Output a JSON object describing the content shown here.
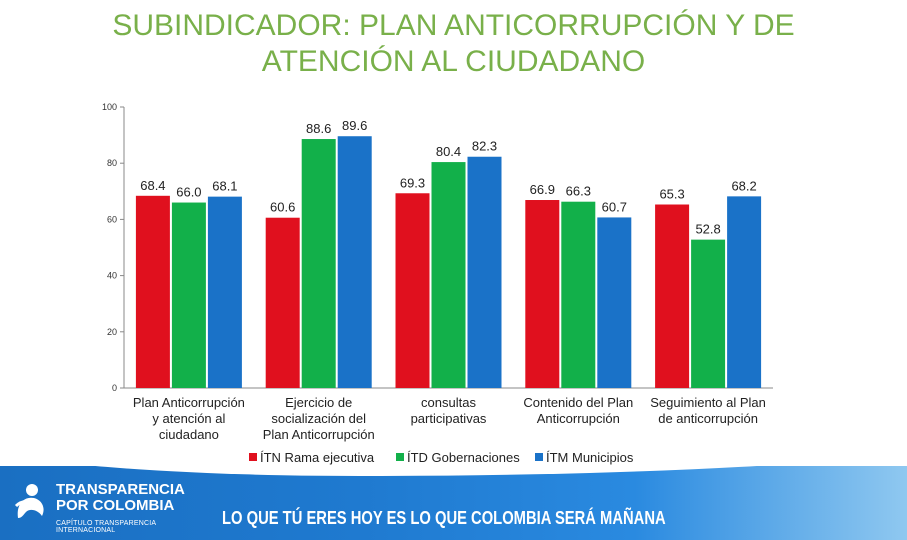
{
  "title": {
    "line1": "SUBINDICADOR: PLAN ANTICORRUPCIÓN Y DE",
    "line2": "ATENCIÓN AL CIUDADANO"
  },
  "chart_data": {
    "type": "bar",
    "title": "SUBINDICADOR: PLAN ANTICORRUPCIÓN Y DE ATENCIÓN AL CIUDADANO",
    "xlabel": "",
    "ylabel": "",
    "ylim": [
      0,
      100
    ],
    "yticks": [
      "0",
      "20",
      "40",
      "60",
      "80",
      "100"
    ],
    "grid": false,
    "legend": "bottom",
    "categories": [
      [
        "Plan Anticorrupción",
        "y atención al",
        "ciudadano"
      ],
      [
        "Ejercicio de",
        "socialización del",
        "Plan Anticorrupción"
      ],
      [
        "consultas",
        "participativas"
      ],
      [
        "Contenido del Plan",
        "Anticorrupción"
      ],
      [
        "Seguimiento al Plan",
        "de anticorrupción"
      ]
    ],
    "series": [
      {
        "name": "ÍTN Rama ejecutiva",
        "color": "#e0101e",
        "values": [
          68.4,
          60.6,
          69.3,
          66.9,
          65.3
        ],
        "labels": [
          "68.4",
          "60.6",
          "69.3",
          "66.9",
          "65.3"
        ]
      },
      {
        "name": "ÍTD Gobernaciones",
        "color": "#12b04a",
        "values": [
          66.0,
          88.6,
          80.4,
          66.3,
          52.8
        ],
        "labels": [
          "66.0",
          "88.6",
          "80.4",
          "66.3",
          "52.8"
        ]
      },
      {
        "name": "ÍTM Municipios",
        "color": "#1a72c8",
        "values": [
          68.1,
          89.6,
          82.3,
          60.7,
          68.2
        ],
        "labels": [
          "68.1",
          "89.6",
          "82.3",
          "60.7",
          "68.2"
        ]
      }
    ]
  },
  "footer": {
    "logo_line1": "TRANSPARENCIA",
    "logo_line2": "POR COLOMBIA",
    "logo_sub": "CAPÍTULO TRANSPARENCIA INTERNACIONAL",
    "slogan": "LO QUE TÚ ERES HOY ES LO QUE COLOMBIA SERÁ MAÑANA"
  }
}
